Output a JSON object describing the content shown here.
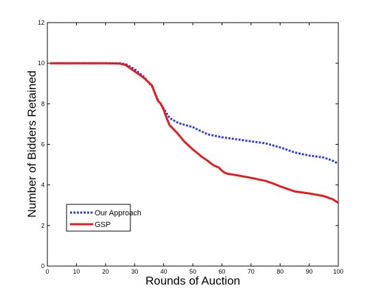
{
  "chart_data": {
    "type": "line",
    "title": "",
    "xlabel": "Rounds of Auction",
    "ylabel": "Number of Bidders Retained",
    "xlim": [
      0,
      100
    ],
    "ylim": [
      0,
      12
    ],
    "xticks": [
      0,
      10,
      20,
      30,
      40,
      50,
      60,
      70,
      80,
      90,
      100
    ],
    "yticks": [
      0,
      2,
      4,
      6,
      8,
      10,
      12
    ],
    "grid": false,
    "legend_position": "bottom-left",
    "series": [
      {
        "name": "Our Approach",
        "color": "#2b3bd6",
        "style": "dotted",
        "x": [
          1,
          10,
          20,
          25,
          27,
          30,
          33,
          36,
          38,
          40,
          42,
          45,
          50,
          55,
          60,
          65,
          70,
          75,
          80,
          85,
          90,
          95,
          98,
          100
        ],
        "y": [
          10,
          10,
          10,
          10,
          9.95,
          9.7,
          9.35,
          8.85,
          8.2,
          7.75,
          7.3,
          7.05,
          6.85,
          6.5,
          6.35,
          6.25,
          6.15,
          6.05,
          5.85,
          5.6,
          5.45,
          5.35,
          5.2,
          5.05
        ]
      },
      {
        "name": "GSP",
        "color": "#e41a1c",
        "style": "solid",
        "x": [
          1,
          10,
          20,
          25,
          27,
          30,
          33,
          36,
          37,
          38,
          39,
          40,
          41,
          42,
          43,
          45,
          47,
          50,
          53,
          55,
          57,
          59,
          60,
          61,
          62,
          65,
          70,
          75,
          78,
          80,
          83,
          85,
          90,
          95,
          98,
          100
        ],
        "y": [
          10,
          10,
          10,
          9.98,
          9.9,
          9.6,
          9.3,
          8.9,
          8.5,
          8.15,
          8.0,
          7.7,
          7.3,
          6.95,
          6.8,
          6.5,
          6.15,
          5.75,
          5.4,
          5.2,
          4.98,
          4.85,
          4.7,
          4.6,
          4.55,
          4.48,
          4.35,
          4.2,
          4.05,
          3.93,
          3.78,
          3.68,
          3.58,
          3.45,
          3.3,
          3.12
        ]
      }
    ]
  }
}
